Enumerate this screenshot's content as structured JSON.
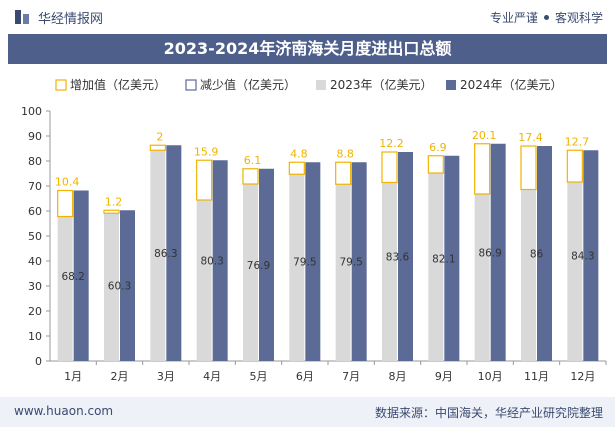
{
  "header": {
    "brand": "华经情报网",
    "tagline_left": "专业严谨",
    "tagline_right": "客观科学"
  },
  "footer": {
    "url": "www.huaon.com",
    "source": "数据来源：中国海关，华经产业研究院整理"
  },
  "colors": {
    "title_bg": "#4e5f8c",
    "bar_2023": "#d9d9d9",
    "bar_2024": "#5b6b96",
    "increase": "#f0b400",
    "decrease": "#5b6b96"
  },
  "chart_data": {
    "type": "bar",
    "title": "2023-2024年济南海关月度进出口总额",
    "legend": [
      "增加值（亿美元）",
      "减少值（亿美元）",
      "2023年（亿美元）",
      "2024年（亿美元）"
    ],
    "categories": [
      "1月",
      "2月",
      "3月",
      "4月",
      "5月",
      "6月",
      "7月",
      "8月",
      "9月",
      "10月",
      "11月",
      "12月"
    ],
    "series": [
      {
        "name": "2023年（亿美元）",
        "values": [
          57.8,
          59.1,
          84.3,
          64.4,
          70.8,
          74.7,
          70.7,
          71.4,
          75.2,
          66.8,
          68.6,
          71.6
        ]
      },
      {
        "name": "2024年（亿美元）",
        "values": [
          68.2,
          60.3,
          86.3,
          80.3,
          76.9,
          79.5,
          79.5,
          83.6,
          82.1,
          86.9,
          86,
          84.3
        ]
      }
    ],
    "change_labels": [
      "10.4",
      "1.2",
      "2",
      "15.9",
      "6.1",
      "4.8",
      "8.8",
      "12.2",
      "6.9",
      "20.1",
      "17.4",
      "12.7"
    ],
    "value_labels": [
      "68.2",
      "60.3",
      "86.3",
      "80.3",
      "76.9",
      "79.5",
      "79.5",
      "83.6",
      "82.1",
      "86.9",
      "86",
      "84.3"
    ],
    "ylim": [
      0,
      100
    ],
    "yticks": [
      0,
      10,
      20,
      30,
      40,
      50,
      60,
      70,
      80,
      90,
      100
    ],
    "legend_position": "top",
    "grid": false
  }
}
